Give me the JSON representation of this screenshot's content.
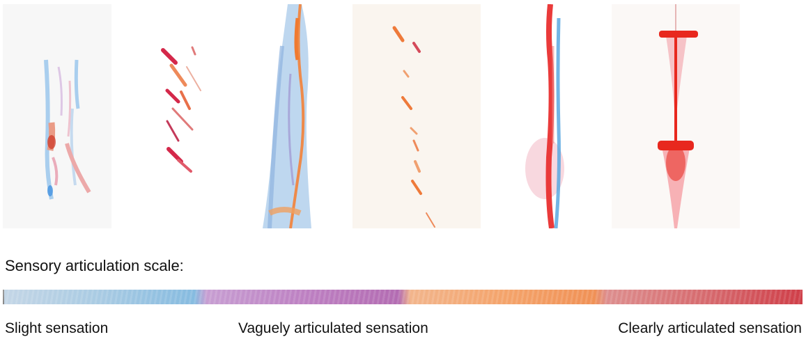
{
  "drawings": [
    {
      "id": "drawing-1"
    },
    {
      "id": "drawing-2"
    },
    {
      "id": "drawing-3"
    },
    {
      "id": "drawing-4"
    },
    {
      "id": "drawing-5"
    },
    {
      "id": "drawing-6"
    }
  ],
  "scale": {
    "title": "Sensory articulation scale:",
    "colors": [
      "#a9cbe3",
      "#bd80c2",
      "#f4a36a",
      "#cf3e48"
    ],
    "labels": {
      "left": "Slight sensation",
      "middle": "Vaguely articulated sensation",
      "right": "Clearly articulated sensation"
    }
  }
}
